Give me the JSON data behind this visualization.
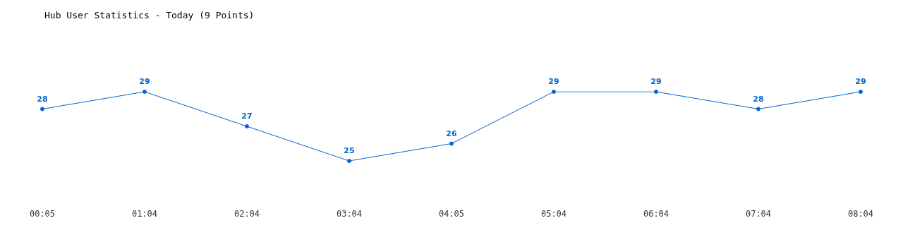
{
  "chart_data": {
    "type": "line",
    "title": "Hub User Statistics - Today (9 Points)",
    "categories": [
      "00:05",
      "01:04",
      "02:04",
      "03:04",
      "04:05",
      "05:04",
      "06:04",
      "07:04",
      "08:04"
    ],
    "series": [
      {
        "color": "#0066cc",
        "values": [
          28,
          29,
          27,
          25,
          26,
          29,
          29,
          28,
          29
        ]
      }
    ],
    "data_labels": true,
    "marker": "circle",
    "line_style": "solid",
    "tick_labels": "x"
  }
}
